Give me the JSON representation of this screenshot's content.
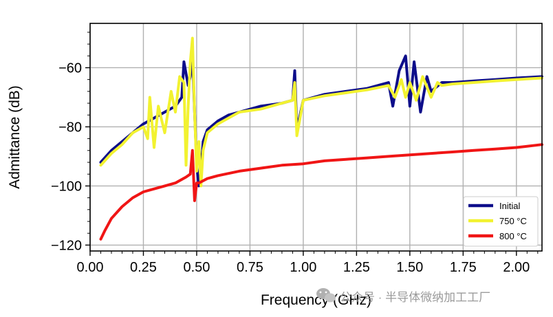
{
  "chart_data": {
    "type": "line",
    "xlabel": "Frequency (GHz)",
    "ylabel": "Admittance (dB)",
    "xlim": [
      0.0,
      2.12
    ],
    "ylim": [
      -122,
      -45
    ],
    "x_ticks": [
      0.0,
      0.25,
      0.5,
      0.75,
      1.0,
      1.25,
      1.5,
      1.75,
      2.0
    ],
    "x_tick_labels": [
      "0.00",
      "0.25",
      "0.50",
      "0.75",
      "1.00",
      "1.25",
      "1.50",
      "1.75",
      "2.00"
    ],
    "y_ticks": [
      -120,
      -100,
      -80,
      -60
    ],
    "y_tick_labels": [
      "−120",
      "−100",
      "−80",
      "−60"
    ],
    "grid": true,
    "legend_position": "lower-right",
    "series": [
      {
        "name": "Initial",
        "color": "#0d0d8a",
        "x": [
          0.05,
          0.1,
          0.15,
          0.2,
          0.25,
          0.3,
          0.35,
          0.4,
          0.43,
          0.44,
          0.45,
          0.46,
          0.47,
          0.48,
          0.49,
          0.5,
          0.51,
          0.52,
          0.53,
          0.55,
          0.6,
          0.65,
          0.7,
          0.8,
          0.9,
          0.95,
          0.96,
          0.97,
          1.0,
          1.1,
          1.2,
          1.3,
          1.4,
          1.42,
          1.45,
          1.48,
          1.5,
          1.52,
          1.55,
          1.58,
          1.6,
          1.65,
          1.7,
          1.8,
          1.9,
          2.0,
          2.12
        ],
        "y": [
          -92,
          -88,
          -85,
          -82,
          -79,
          -77,
          -75,
          -73,
          -70,
          -58,
          -62,
          -66,
          -63,
          -55,
          -75,
          -93,
          -100,
          -95,
          -85,
          -81,
          -78,
          -76,
          -75,
          -73,
          -72,
          -71,
          -61,
          -81,
          -71,
          -69,
          -68,
          -67,
          -65,
          -73,
          -61,
          -56,
          -73,
          -58,
          -75,
          -63,
          -68,
          -65,
          -65,
          -64.5,
          -64,
          -63.5,
          -63
        ]
      },
      {
        "name": "750 °C",
        "color": "#f2f230",
        "x": [
          0.05,
          0.1,
          0.15,
          0.2,
          0.25,
          0.27,
          0.28,
          0.3,
          0.32,
          0.35,
          0.38,
          0.4,
          0.42,
          0.44,
          0.45,
          0.46,
          0.47,
          0.48,
          0.49,
          0.5,
          0.51,
          0.52,
          0.53,
          0.55,
          0.6,
          0.65,
          0.7,
          0.8,
          0.9,
          0.95,
          0.96,
          0.97,
          1.0,
          1.1,
          1.2,
          1.3,
          1.4,
          1.43,
          1.46,
          1.48,
          1.5,
          1.53,
          1.56,
          1.6,
          1.63,
          1.65,
          1.7,
          1.8,
          1.9,
          2.0,
          2.12
        ],
        "y": [
          -93,
          -89,
          -86,
          -82,
          -80,
          -84,
          -70,
          -87,
          -73,
          -82,
          -68,
          -75,
          -63,
          -65,
          -93,
          -73,
          -58,
          -50,
          -75,
          -95,
          -85,
          -100,
          -88,
          -82,
          -79,
          -77,
          -75,
          -74,
          -72,
          -71,
          -65,
          -83,
          -71,
          -69.5,
          -68.5,
          -67.5,
          -66,
          -70,
          -64,
          -70,
          -65,
          -71,
          -63,
          -70,
          -65,
          -66,
          -65.5,
          -65,
          -64.5,
          -64,
          -63.5
        ]
      },
      {
        "name": "800 °C",
        "color": "#f01515",
        "x": [
          0.05,
          0.07,
          0.1,
          0.15,
          0.2,
          0.25,
          0.3,
          0.35,
          0.4,
          0.45,
          0.47,
          0.48,
          0.49,
          0.5,
          0.51,
          0.55,
          0.6,
          0.7,
          0.8,
          0.9,
          1.0,
          1.1,
          1.2,
          1.3,
          1.4,
          1.5,
          1.6,
          1.7,
          1.8,
          1.9,
          2.0,
          2.12
        ],
        "y": [
          -118,
          -115,
          -111,
          -107,
          -104,
          -102,
          -101,
          -100,
          -99,
          -97,
          -96,
          -88,
          -105,
          -99,
          -99,
          -97.5,
          -96.5,
          -95,
          -94,
          -93,
          -92.5,
          -91.5,
          -91,
          -90.5,
          -90,
          -89.5,
          -89,
          -88.5,
          -88,
          -87.5,
          -87,
          -86
        ]
      }
    ]
  },
  "watermark": {
    "icon": "wechat-icon",
    "text": "公众号 · 半导体微纳加工工厂"
  }
}
